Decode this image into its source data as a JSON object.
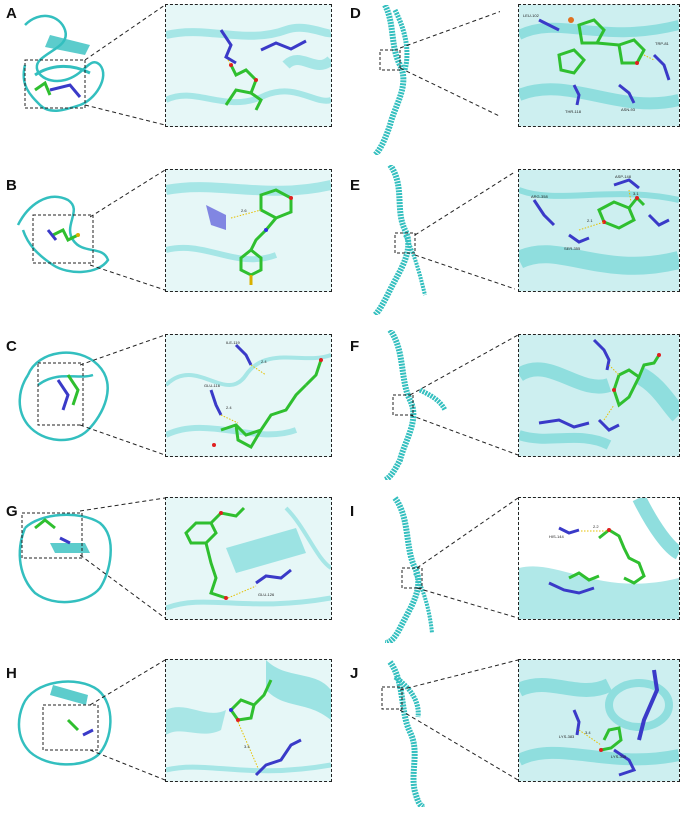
{
  "panels": [
    {
      "id": "A",
      "label": "A",
      "residues": [
        "",
        ""
      ],
      "distances": [
        ""
      ]
    },
    {
      "id": "B",
      "label": "B",
      "residues": [
        ""
      ],
      "distances": [
        "2.6"
      ]
    },
    {
      "id": "C",
      "label": "C",
      "residues": [
        "ILE-119",
        "GLU-116"
      ],
      "distances": [
        "2.4",
        "2.4"
      ]
    },
    {
      "id": "G",
      "label": "G",
      "residues": [
        "GLU-126"
      ],
      "distances": [
        ""
      ]
    },
    {
      "id": "H",
      "label": "H",
      "residues": [
        ""
      ],
      "distances": [
        "3.4"
      ]
    },
    {
      "id": "D",
      "label": "D",
      "residues": [
        "LEU-102",
        "THR-118",
        "ASN-93",
        "TRP-81"
      ],
      "distances": [
        ""
      ]
    },
    {
      "id": "E",
      "label": "E",
      "residues": [
        "ARG-358",
        "ASP-148",
        "SER-355"
      ],
      "distances": [
        "2.1",
        "3.1"
      ]
    },
    {
      "id": "F",
      "label": "F",
      "residues": [
        "",
        ""
      ],
      "distances": [
        ""
      ]
    },
    {
      "id": "I",
      "label": "I",
      "residues": [
        "HIS-144"
      ],
      "distances": [
        "2.2"
      ]
    },
    {
      "id": "J",
      "label": "J",
      "residues": [
        "LYS-383",
        "LYS-310"
      ],
      "distances": [
        "3.4"
      ]
    }
  ],
  "colors": {
    "protein": "#33bfbf",
    "protein_light": "#a6e6e6",
    "residue": "#3a3ac8",
    "ligand": "#2fbf2f",
    "oxygen": "#e02020",
    "sulfur": "#d8b000",
    "hbond": "#e6c000",
    "nitrogen": "#3030e0"
  }
}
